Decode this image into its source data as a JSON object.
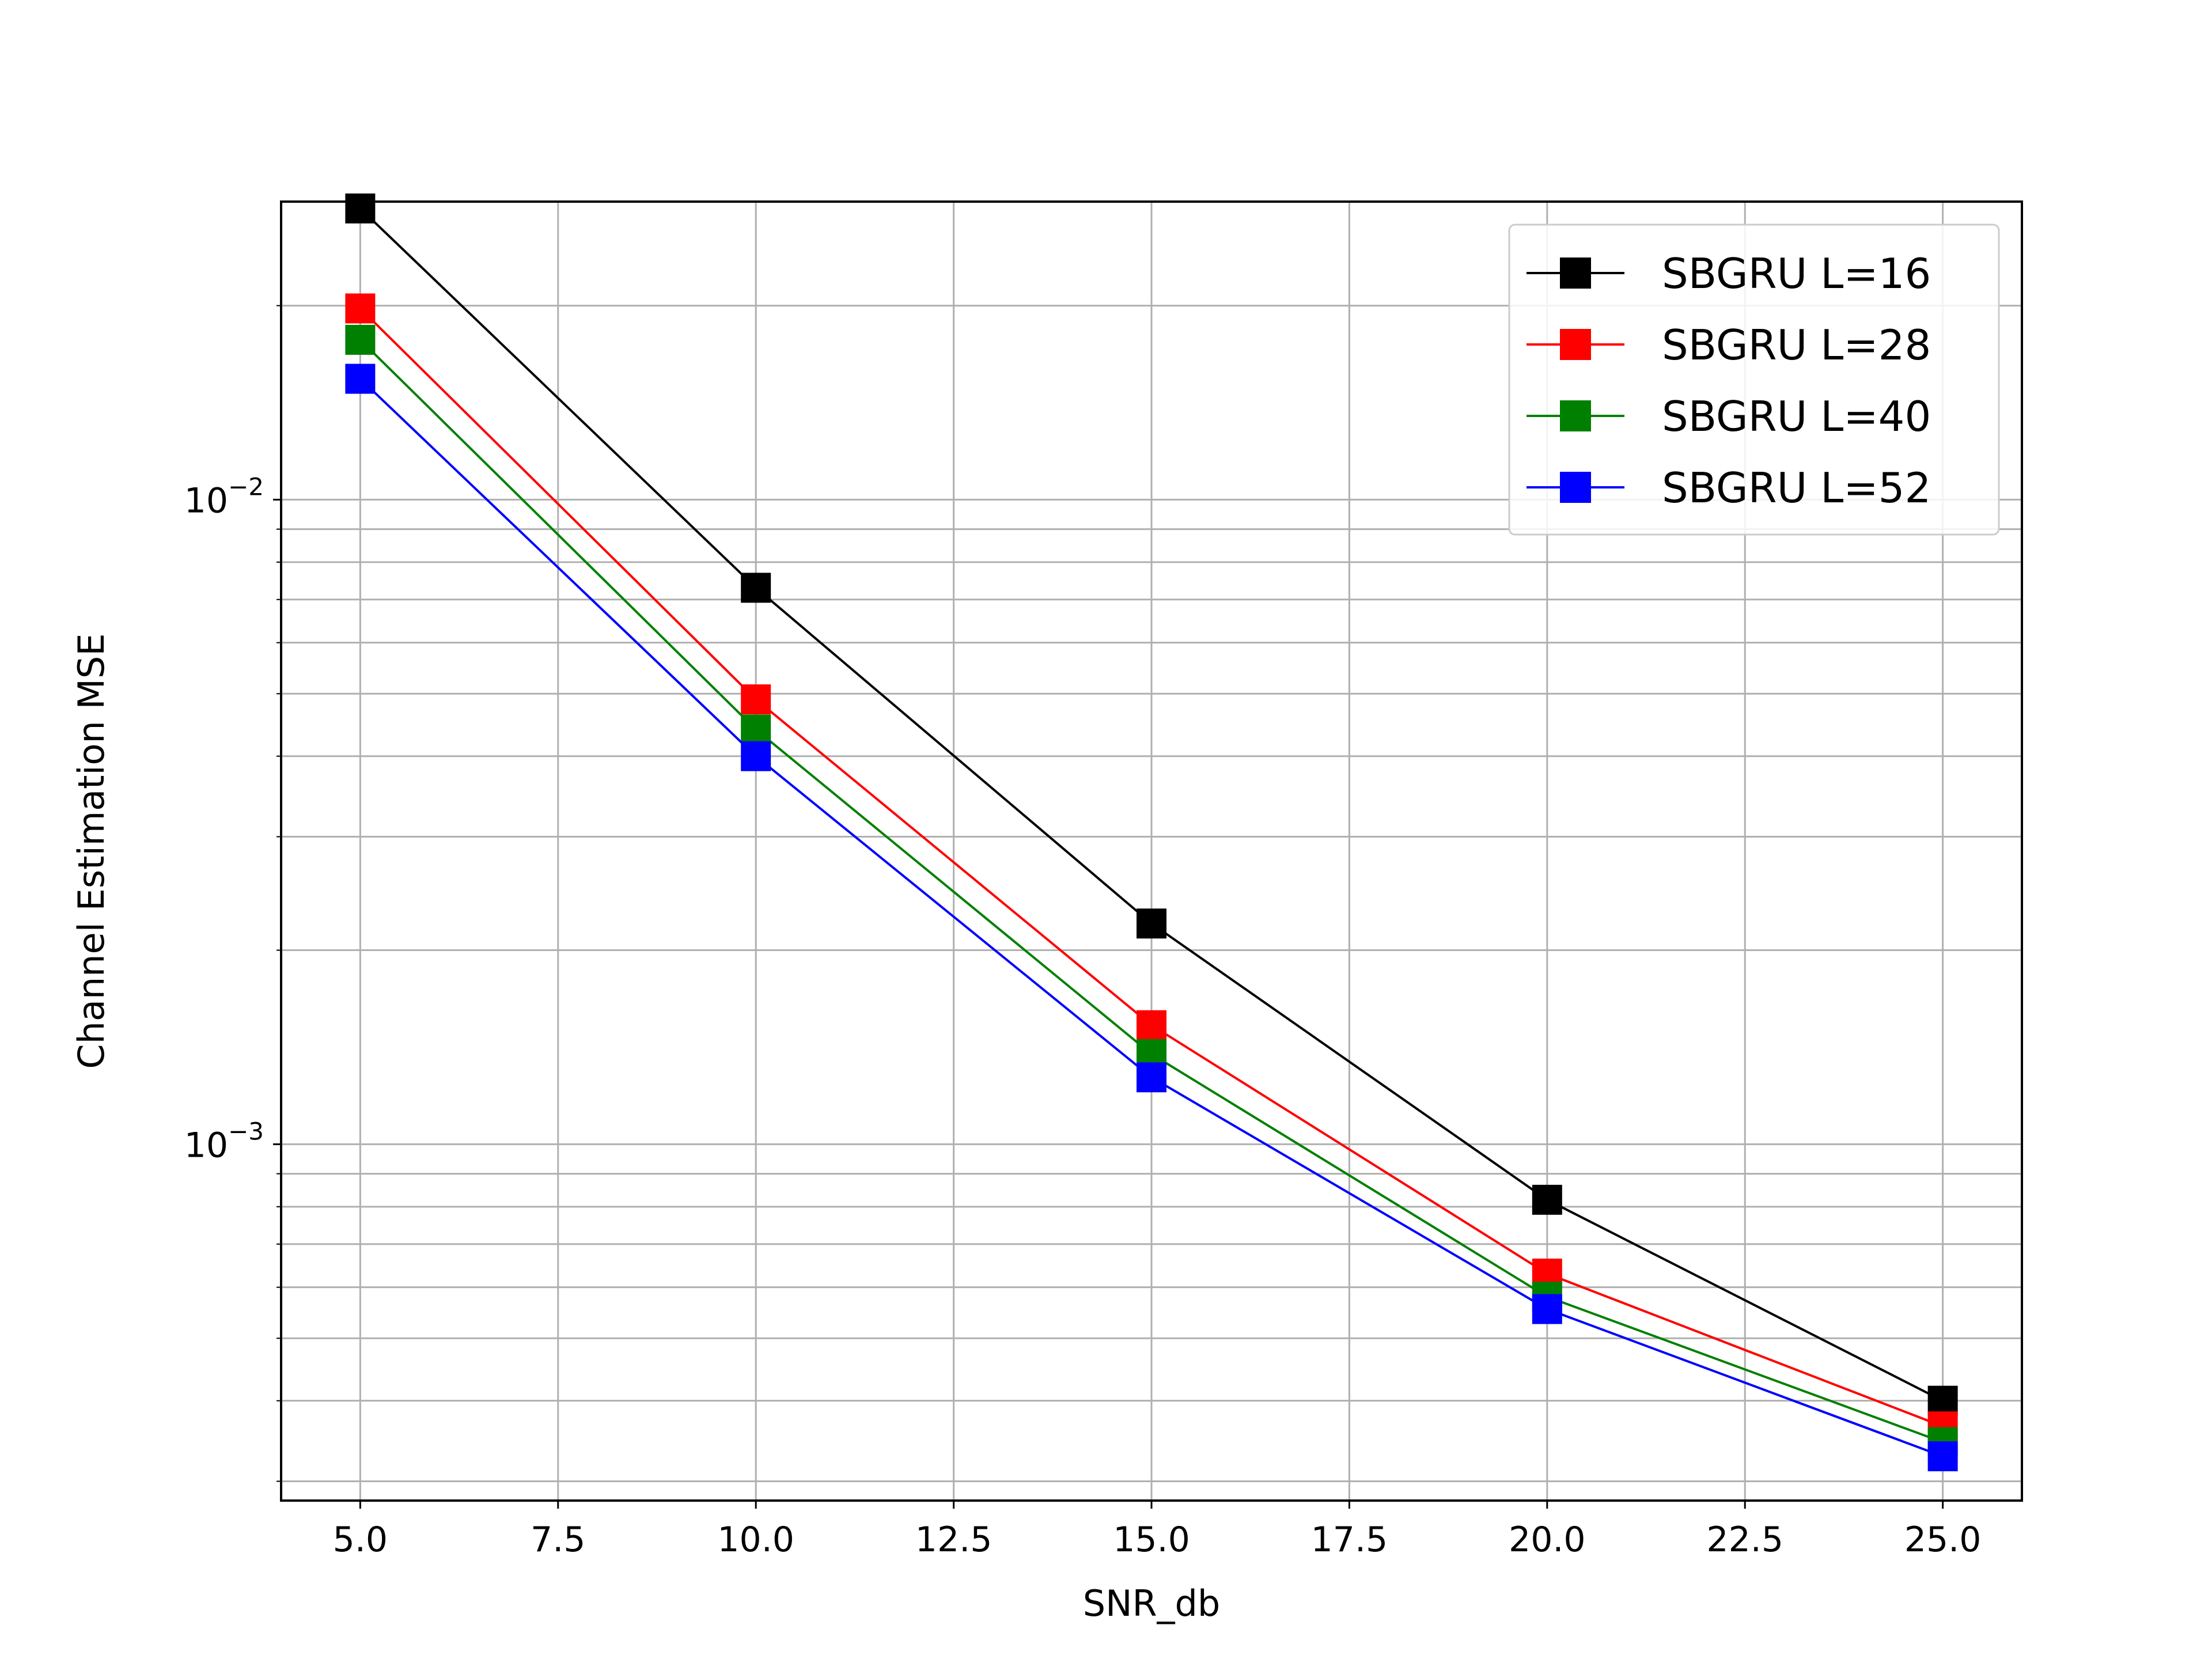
{
  "chart_data": {
    "type": "line",
    "title": "",
    "xlabel": "SNR_db",
    "ylabel": "Channel Estimation MSE",
    "xscale": "linear",
    "yscale": "log",
    "xlim": [
      4.0,
      26.0
    ],
    "ylim": [
      0.00028,
      0.029
    ],
    "grid": true,
    "legend_position": "top-right",
    "x": [
      5,
      10,
      15,
      20,
      25
    ],
    "x_ticks": [
      "5.0",
      "7.5",
      "10.0",
      "12.5",
      "15.0",
      "17.5",
      "20.0",
      "22.5",
      "25.0"
    ],
    "y_ticks": [
      {
        "base": "10",
        "exponent": "−3",
        "value": 0.001
      },
      {
        "base": "10",
        "exponent": "−2",
        "value": 0.01
      }
    ],
    "series": [
      {
        "name": "SBGRU L=16",
        "color": "#000000",
        "marker": "square",
        "values": [
          0.0283,
          0.0073,
          0.0022,
          0.00082,
          0.0004
        ]
      },
      {
        "name": "SBGRU L=28",
        "color": "#ff0000",
        "marker": "square",
        "values": [
          0.0198,
          0.0049,
          0.00153,
          0.00063,
          0.000365
        ]
      },
      {
        "name": "SBGRU L=40",
        "color": "#008000",
        "marker": "square",
        "values": [
          0.0177,
          0.0044,
          0.00138,
          0.00058,
          0.000345
        ]
      },
      {
        "name": "SBGRU L=52",
        "color": "#0000ff",
        "marker": "square",
        "values": [
          0.0154,
          0.004,
          0.00127,
          0.000555,
          0.000328
        ]
      }
    ]
  }
}
